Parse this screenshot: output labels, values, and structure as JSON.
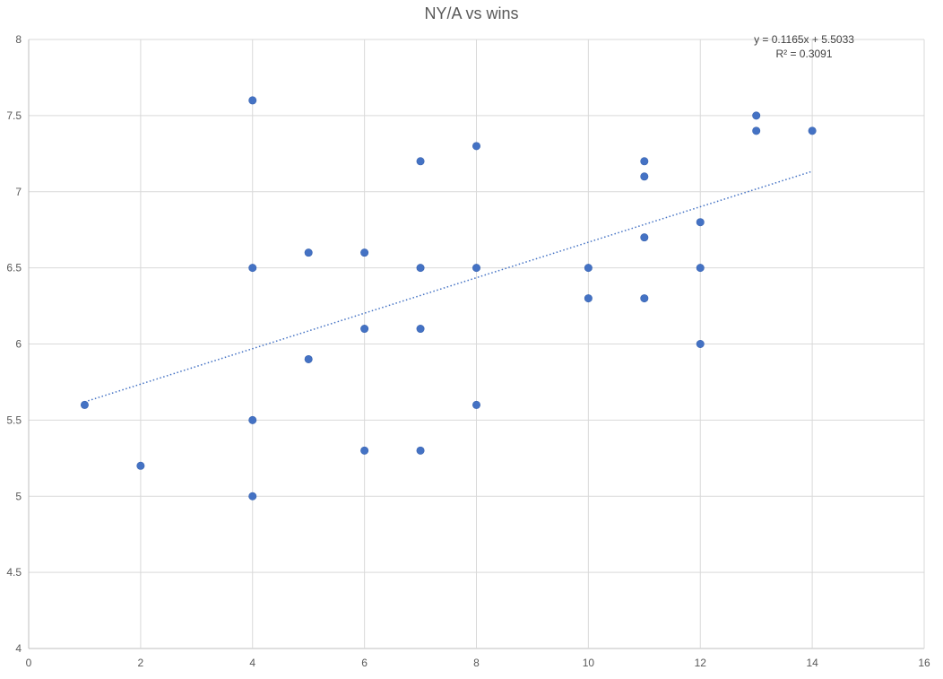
{
  "chart_data": {
    "type": "scatter",
    "title": "NY/A vs wins",
    "xlabel": "",
    "ylabel": "",
    "xlim": [
      0,
      16
    ],
    "ylim": [
      4,
      8
    ],
    "x_ticks": [
      0,
      2,
      4,
      6,
      8,
      10,
      12,
      14,
      16
    ],
    "y_ticks": [
      4,
      4.5,
      5,
      5.5,
      6,
      6.5,
      7,
      7.5,
      8
    ],
    "grid": true,
    "legend": "none",
    "marker_color": "#4472C4",
    "series": [
      {
        "points": [
          {
            "x": 1,
            "y": 5.6
          },
          {
            "x": 2,
            "y": 5.2
          },
          {
            "x": 4,
            "y": 7.6
          },
          {
            "x": 4,
            "y": 6.5
          },
          {
            "x": 4,
            "y": 5.5
          },
          {
            "x": 4,
            "y": 5.0
          },
          {
            "x": 5,
            "y": 6.6
          },
          {
            "x": 5,
            "y": 5.9
          },
          {
            "x": 6,
            "y": 6.6
          },
          {
            "x": 6,
            "y": 6.1
          },
          {
            "x": 6,
            "y": 5.3
          },
          {
            "x": 7,
            "y": 7.2
          },
          {
            "x": 7,
            "y": 6.5
          },
          {
            "x": 7,
            "y": 6.1
          },
          {
            "x": 7,
            "y": 5.3
          },
          {
            "x": 8,
            "y": 7.3
          },
          {
            "x": 8,
            "y": 6.5
          },
          {
            "x": 8,
            "y": 5.6
          },
          {
            "x": 10,
            "y": 6.5
          },
          {
            "x": 10,
            "y": 6.3
          },
          {
            "x": 11,
            "y": 7.2
          },
          {
            "x": 11,
            "y": 7.1
          },
          {
            "x": 11,
            "y": 6.7
          },
          {
            "x": 11,
            "y": 6.3
          },
          {
            "x": 12,
            "y": 6.8
          },
          {
            "x": 12,
            "y": 6.5
          },
          {
            "x": 12,
            "y": 6.0
          },
          {
            "x": 13,
            "y": 7.5
          },
          {
            "x": 13,
            "y": 7.4
          },
          {
            "x": 14,
            "y": 7.4
          }
        ]
      }
    ],
    "trendline": {
      "type": "linear",
      "slope": 0.1165,
      "intercept": 5.5033,
      "x_range": [
        1,
        14
      ],
      "style": "dotted",
      "color": "#4472C4",
      "equation_label": "y = 0.1165x + 5.5033",
      "r2_label": "R² = 0.3091"
    }
  }
}
